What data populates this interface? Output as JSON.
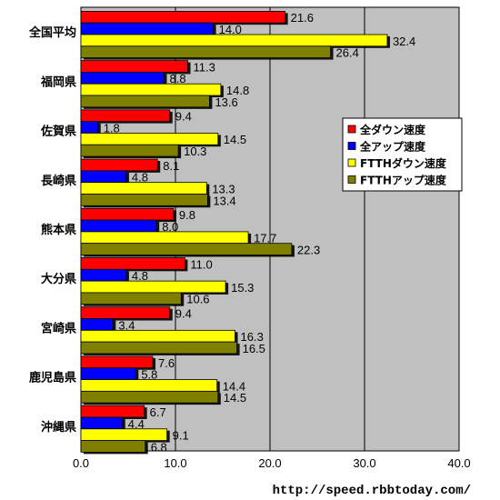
{
  "chart_data": {
    "type": "bar",
    "orientation": "horizontal",
    "categories": [
      "全国平均",
      "福岡県",
      "佐賀県",
      "長崎県",
      "熊本県",
      "大分県",
      "宮崎県",
      "鹿児島県",
      "沖縄県"
    ],
    "series": [
      {
        "name": "全ダウン速度",
        "color": "#ff0000",
        "values": [
          21.6,
          11.3,
          9.4,
          8.1,
          9.8,
          11.0,
          9.4,
          7.6,
          6.7
        ]
      },
      {
        "name": "全アップ速度",
        "color": "#0000ff",
        "values": [
          14.0,
          8.8,
          1.8,
          4.8,
          8.0,
          4.8,
          3.4,
          5.8,
          4.4
        ]
      },
      {
        "name": "FTTHダウン速度",
        "color": "#ffff00",
        "values": [
          32.4,
          14.8,
          14.5,
          13.3,
          17.7,
          15.3,
          16.3,
          14.4,
          9.1
        ]
      },
      {
        "name": "FTTHアップ速度",
        "color": "#808000",
        "values": [
          26.4,
          13.6,
          10.3,
          13.4,
          22.3,
          10.6,
          16.5,
          14.5,
          6.8
        ]
      }
    ],
    "xlim": [
      0,
      40
    ],
    "xticks": [
      "0.0",
      "10.0",
      "20.0",
      "30.0",
      "40.0"
    ],
    "grid": true,
    "legend_position": "right",
    "plot_background": "#c0c0c0"
  },
  "footer": {
    "url": "http://speed.rbbtoday.com/"
  }
}
